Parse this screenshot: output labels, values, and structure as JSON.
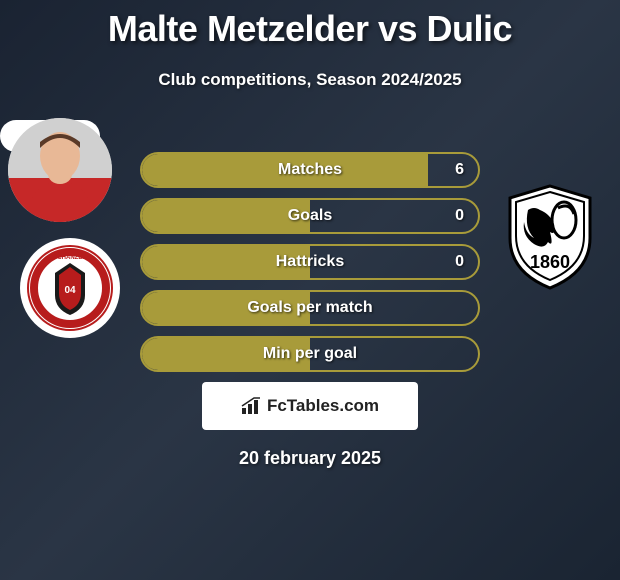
{
  "title": "Malte Metzelder vs Dulic",
  "subtitle": "Club competitions, Season 2024/2025",
  "date": "20 february 2025",
  "branding": "FcTables.com",
  "colors": {
    "pill_border": "#a89b3a",
    "pill_fill": "#a89b3a",
    "background_start": "#1a2332",
    "background_end": "#1a2432",
    "text": "#ffffff"
  },
  "stats": [
    {
      "label": "Matches",
      "value": "6",
      "fill_pct": 85
    },
    {
      "label": "Goals",
      "value": "0",
      "fill_pct": 50
    },
    {
      "label": "Hattricks",
      "value": "0",
      "fill_pct": 50
    },
    {
      "label": "Goals per match",
      "value": "",
      "fill_pct": 50
    },
    {
      "label": "Min per goal",
      "value": "",
      "fill_pct": 50
    }
  ],
  "left_player": {
    "shirt_color": "#c62828",
    "skin": "#e8b896"
  },
  "left_club": {
    "ring_color": "#b71c1c",
    "inner": "#ffffff"
  },
  "right_club": {
    "shield_fill": "#ffffff",
    "shield_stroke": "#000000",
    "year": "1860"
  }
}
